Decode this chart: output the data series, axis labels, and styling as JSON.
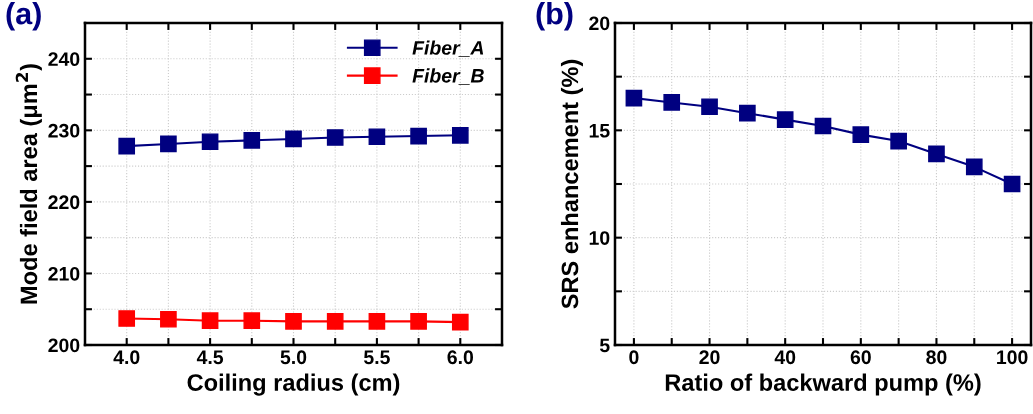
{
  "chart_data": [
    {
      "type": "line",
      "title": "(a)",
      "xlabel": "Coiling radius (cm)",
      "ylabel": "Mode field area (μm$^{2}$)",
      "x": [
        4.0,
        4.25,
        4.5,
        4.75,
        5.0,
        5.25,
        5.5,
        5.75,
        6.0
      ],
      "series": [
        {
          "name": "Fiber_A",
          "color": "#000080",
          "values": [
            227.8,
            228.1,
            228.4,
            228.6,
            228.8,
            229.0,
            229.1,
            229.2,
            229.3
          ]
        },
        {
          "name": "Fiber_B",
          "color": "#ff0000",
          "values": [
            203.7,
            203.6,
            203.4,
            203.4,
            203.3,
            203.3,
            203.3,
            203.3,
            203.2
          ]
        }
      ],
      "xlim": [
        3.75,
        6.25
      ],
      "xticks": [
        {
          "value": 4.0,
          "label": "4.0"
        },
        {
          "value": 4.25,
          "label": null
        },
        {
          "value": 4.5,
          "label": "4.5"
        },
        {
          "value": 4.75,
          "label": null
        },
        {
          "value": 5.0,
          "label": "5.0"
        },
        {
          "value": 5.25,
          "label": null
        },
        {
          "value": 5.5,
          "label": "5.5"
        },
        {
          "value": 5.75,
          "label": null
        },
        {
          "value": 6.0,
          "label": "6.0"
        }
      ],
      "ylim": [
        200,
        245
      ],
      "yticks": [
        200,
        {
          "value": 205,
          "label": null
        },
        210,
        {
          "value": 215,
          "label": null
        },
        220,
        {
          "value": 225,
          "label": null
        },
        230,
        {
          "value": 235,
          "label": null
        },
        240
      ],
      "grid": true,
      "legend": "top right",
      "marker": "square",
      "line_style": "solid"
    },
    {
      "type": "line",
      "title": "(b)",
      "xlabel": "Ratio of backward pump (%)",
      "ylabel": "SRS enhancement (%)",
      "x": [
        0,
        10,
        20,
        30,
        40,
        50,
        60,
        70,
        80,
        90,
        100
      ],
      "series": [
        {
          "color": "#000080",
          "values": [
            16.5,
            16.3,
            16.1,
            15.8,
            15.5,
            15.2,
            14.8,
            14.5,
            13.9,
            13.3,
            12.5
          ]
        }
      ],
      "xlim": [
        -5,
        105
      ],
      "xticks": [
        0,
        {
          "value": 10,
          "label": null
        },
        20,
        {
          "value": 30,
          "label": null
        },
        40,
        {
          "value": 50,
          "label": null
        },
        60,
        {
          "value": 70,
          "label": null
        },
        80,
        {
          "value": 90,
          "label": null
        },
        100
      ],
      "ylim": [
        5,
        20
      ],
      "yticks": [
        5,
        {
          "value": 7.5,
          "label": null
        },
        10,
        {
          "value": 12.5,
          "label": null
        },
        15,
        {
          "value": 17.5,
          "label": null
        },
        20
      ],
      "grid": true,
      "marker": "square",
      "line_style": "solid"
    }
  ]
}
